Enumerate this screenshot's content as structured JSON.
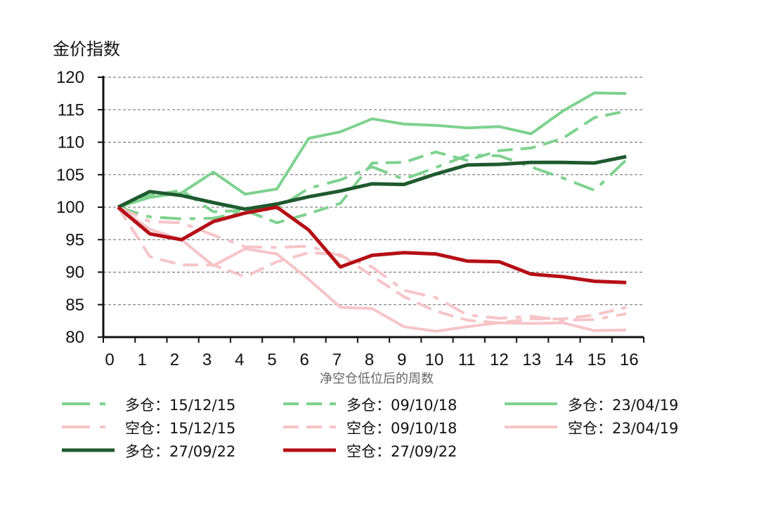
{
  "chart_data": {
    "type": "line",
    "title": "",
    "ylabel": "金价指数",
    "xlabel": "净空仓低位后的周数",
    "ylim": [
      80,
      120
    ],
    "xlim": [
      0,
      16
    ],
    "y_ticks": [
      "80",
      "85",
      "90",
      "95",
      "100",
      "105",
      "110",
      "115",
      "120"
    ],
    "x_ticks": [
      "0",
      "1",
      "2",
      "3",
      "4",
      "5",
      "6",
      "7",
      "8",
      "9",
      "10",
      "11",
      "12",
      "13",
      "14",
      "15",
      "16"
    ],
    "grid": "horizontal dashed",
    "legend_position": "bottom",
    "x": [
      0,
      1,
      2,
      3,
      4,
      5,
      6,
      7,
      8,
      9,
      10,
      11,
      12,
      13,
      14,
      15,
      16
    ],
    "series": [
      {
        "name": "多仓：15/12/15",
        "color": "#7dd28e",
        "style": "dashdot",
        "values": [
          100,
          98.5,
          98.2,
          98.3,
          99.3,
          99.8,
          102.9,
          104.2,
          106.2,
          104.3,
          106.1,
          108.0,
          107.9,
          106.2,
          104.5,
          102.6,
          107.3
        ]
      },
      {
        "name": "多仓：09/10/18",
        "color": "#7dd28e",
        "style": "dashed",
        "values": [
          100,
          101.8,
          102.6,
          99.3,
          99.5,
          97.6,
          99.0,
          100.6,
          106.8,
          106.9,
          108.5,
          107.2,
          108.7,
          109.1,
          110.6,
          113.8,
          114.8
        ]
      },
      {
        "name": "多仓：23/04/19",
        "color": "#7dd28e",
        "style": "solid",
        "values": [
          100,
          101.5,
          102.2,
          105.4,
          102.0,
          102.8,
          110.6,
          111.6,
          113.6,
          112.8,
          112.6,
          112.2,
          112.4,
          111.3,
          114.8,
          117.6,
          117.5
        ]
      },
      {
        "name": "空仓：15/12/15",
        "color": "#f6c4c8",
        "style": "dashdot",
        "values": [
          100,
          97.8,
          97.6,
          95.7,
          93.9,
          93.8,
          94.0,
          92.5,
          90.8,
          87.2,
          86.1,
          83.4,
          82.9,
          83.2,
          82.6,
          82.7,
          83.6
        ]
      },
      {
        "name": "空仓：09/10/18",
        "color": "#f6c4c8",
        "style": "dashed",
        "values": [
          100,
          92.4,
          91.1,
          91.1,
          89.3,
          91.6,
          93.0,
          92.7,
          89.4,
          86.2,
          84.0,
          82.6,
          82.2,
          82.8,
          82.8,
          83.4,
          84.6
        ]
      },
      {
        "name": "空仓：23/04/19",
        "color": "#f6c4c8",
        "style": "solid",
        "values": [
          100,
          96.6,
          95.0,
          91.0,
          93.6,
          92.8,
          88.9,
          84.6,
          84.4,
          81.6,
          80.9,
          81.6,
          82.2,
          82.1,
          82.2,
          81.0,
          81.1
        ]
      },
      {
        "name": "多仓：27/09/22",
        "color": "#1e5a2e",
        "style": "solid",
        "values": [
          100,
          102.4,
          101.8,
          100.7,
          99.7,
          100.5,
          101.6,
          102.5,
          103.6,
          103.5,
          105.1,
          106.5,
          106.6,
          106.9,
          106.9,
          106.8,
          107.8
        ]
      },
      {
        "name": "空仓：27/09/22",
        "color": "#b50e16",
        "style": "solid",
        "values": [
          100,
          95.9,
          95.0,
          97.8,
          99.1,
          100.0,
          96.5,
          90.8,
          92.6,
          93.0,
          92.8,
          91.7,
          91.6,
          89.7,
          89.3,
          88.6,
          88.4
        ]
      }
    ]
  }
}
